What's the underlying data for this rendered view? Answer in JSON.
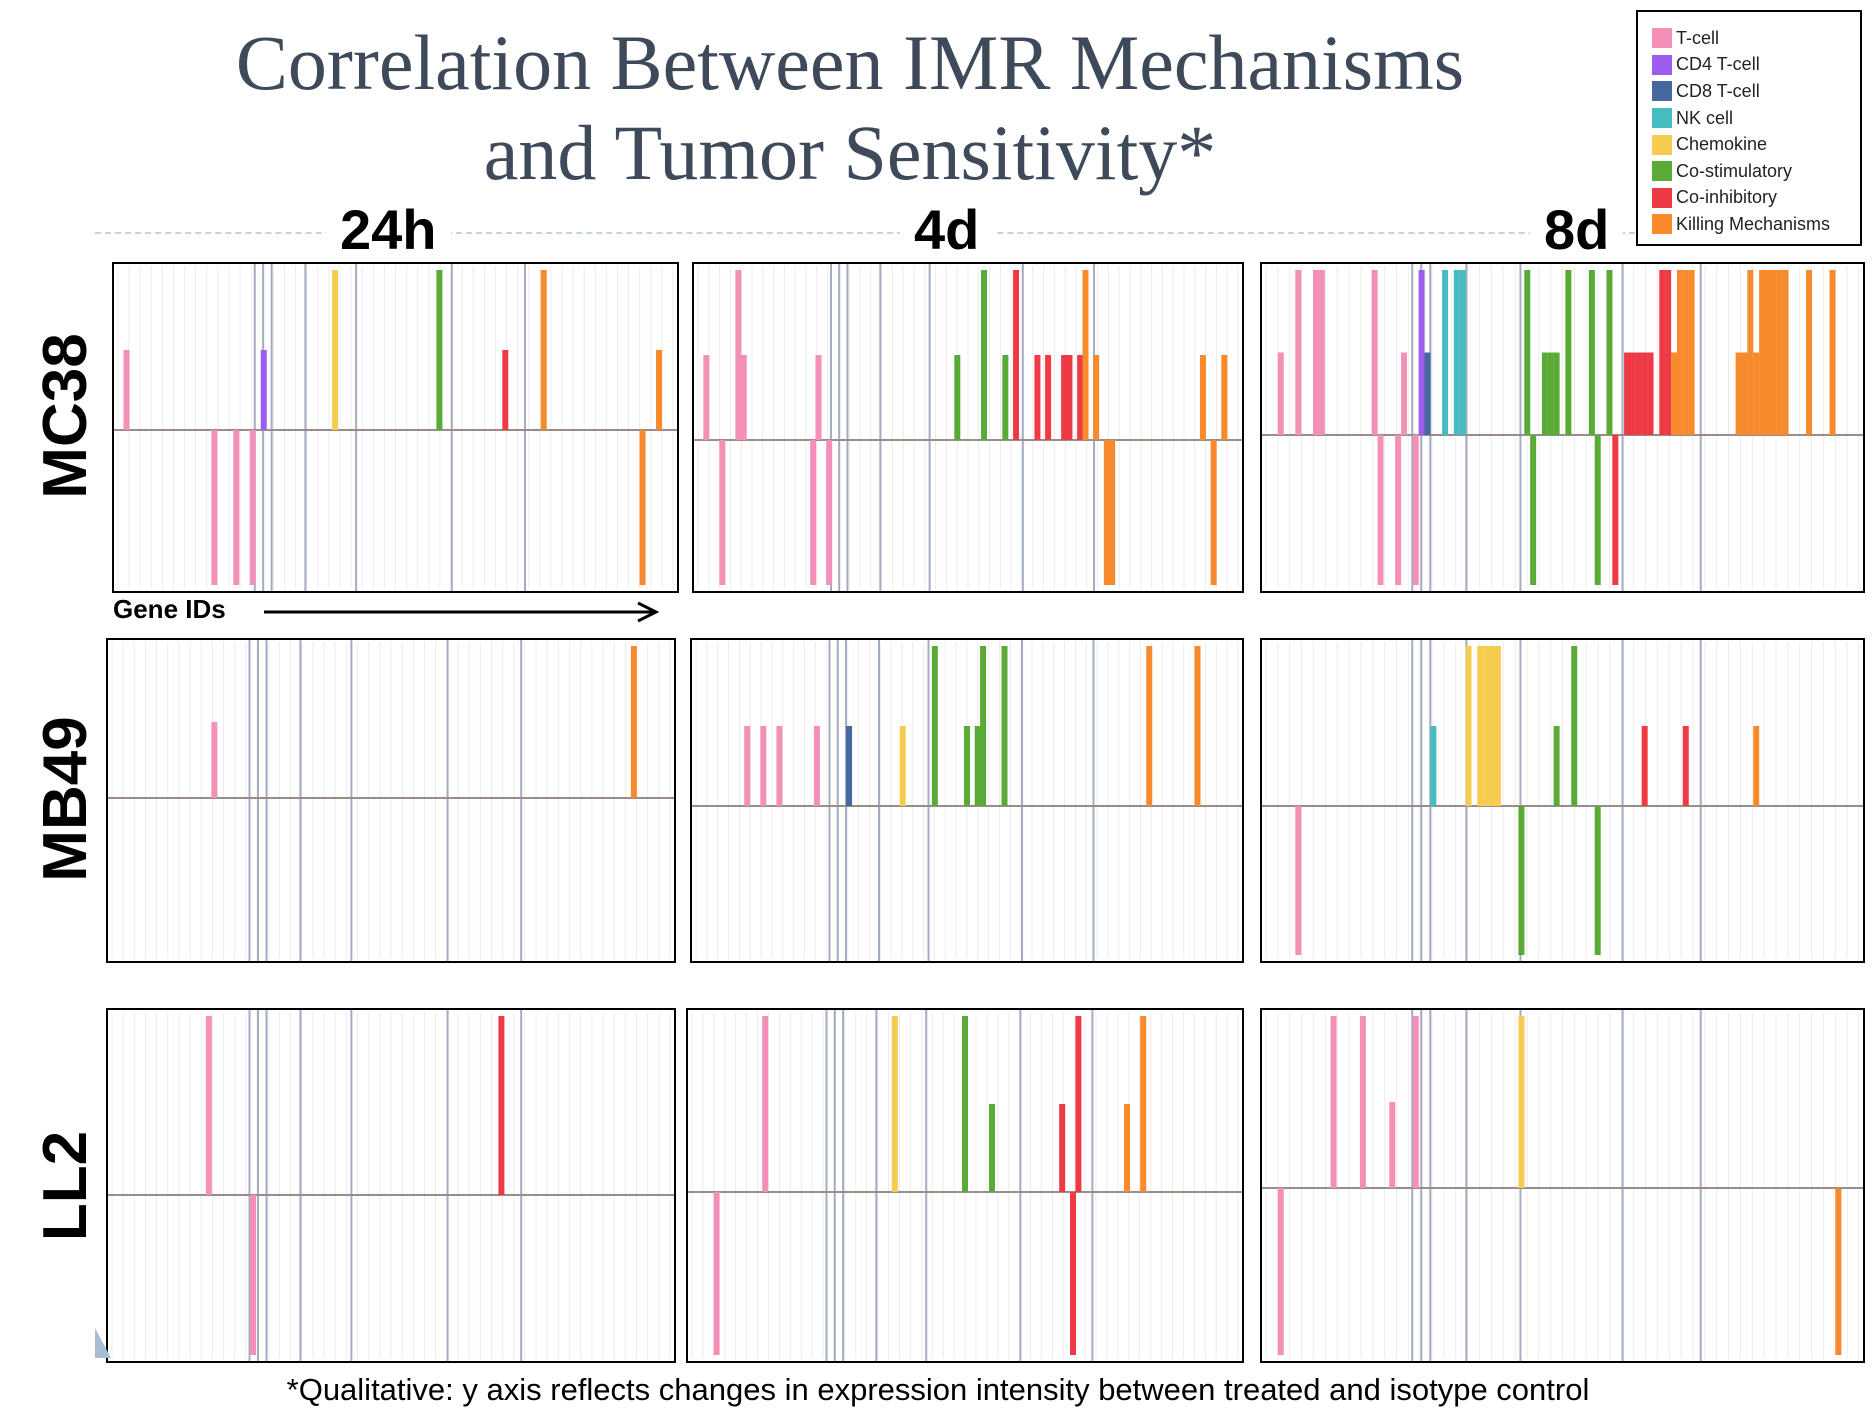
{
  "title_line1": "Correlation Between IMR Mechanisms",
  "title_line2": "and Tumor Sensitivity*",
  "columns": [
    "24h",
    "4d",
    "8d"
  ],
  "rows": [
    "MC38",
    "MB49",
    "LL2"
  ],
  "x_axis_label": "Gene IDs",
  "footnote": "*Qualitative: y axis reflects changes in expression intensity between treated and isotype control",
  "legend": [
    {
      "label": "T-cell",
      "color": "#f48fb8"
    },
    {
      "label": "CD4 T-cell",
      "color": "#9d5cf0"
    },
    {
      "label": "CD8 T-cell",
      "color": "#46689e"
    },
    {
      "label": "NK cell",
      "color": "#45bcc0"
    },
    {
      "label": "Chemokine",
      "color": "#f5cc4f"
    },
    {
      "label": "Co-stimulatory",
      "color": "#5aaa38"
    },
    {
      "label": "Co-inhibitory",
      "color": "#ee3a45"
    },
    {
      "label": "Killing Mechanisms",
      "color": "#f88a2e"
    }
  ],
  "chart_data": {
    "type": "bar",
    "note": "Qualitative expression change per gene; x = gene index 0-99, y = relative change (-1 to 1)",
    "ylim": [
      -1,
      1
    ],
    "xlim": [
      0,
      100
    ],
    "panels": [
      {
        "row": "MC38",
        "col": "24h",
        "bars": [
          {
            "x": 1,
            "y": 0.5,
            "cat": "T-cell"
          },
          {
            "x": 17,
            "y": -1,
            "cat": "T-cell"
          },
          {
            "x": 21,
            "y": -1,
            "cat": "T-cell"
          },
          {
            "x": 24,
            "y": -1,
            "cat": "T-cell"
          },
          {
            "x": 26,
            "y": 0.5,
            "cat": "CD4 T-cell"
          },
          {
            "x": 39,
            "y": 1,
            "cat": "Chemokine"
          },
          {
            "x": 58,
            "y": 1,
            "cat": "Co-stimulatory"
          },
          {
            "x": 70,
            "y": 0.5,
            "cat": "Co-inhibitory"
          },
          {
            "x": 77,
            "y": 1,
            "cat": "Killing Mechanisms"
          },
          {
            "x": 95,
            "y": -1,
            "cat": "Killing Mechanisms"
          },
          {
            "x": 98,
            "y": 0.5,
            "cat": "Killing Mechanisms"
          }
        ]
      },
      {
        "row": "MC38",
        "col": "4d",
        "bars": [
          {
            "x": 1,
            "y": 0.5,
            "cat": "T-cell"
          },
          {
            "x": 4,
            "y": -1,
            "cat": "T-cell"
          },
          {
            "x": 7,
            "y": 1,
            "cat": "T-cell"
          },
          {
            "x": 8,
            "y": 0.5,
            "cat": "T-cell"
          },
          {
            "x": 21,
            "y": -1,
            "cat": "T-cell"
          },
          {
            "x": 22,
            "y": 0.5,
            "cat": "T-cell"
          },
          {
            "x": 24,
            "y": -1,
            "cat": "T-cell"
          },
          {
            "x": 48,
            "y": 0.5,
            "cat": "Co-stimulatory"
          },
          {
            "x": 53,
            "y": 1,
            "cat": "Co-stimulatory"
          },
          {
            "x": 57,
            "y": 0.5,
            "cat": "Co-stimulatory"
          },
          {
            "x": 59,
            "y": 1,
            "cat": "Co-inhibitory"
          },
          {
            "x": 63,
            "y": 0.5,
            "cat": "Co-inhibitory"
          },
          {
            "x": 65,
            "y": 0.5,
            "cat": "Co-inhibitory"
          },
          {
            "x": 68,
            "y": 0.5,
            "cat": "Co-inhibitory"
          },
          {
            "x": 69,
            "y": 0.5,
            "cat": "Co-inhibitory"
          },
          {
            "x": 71,
            "y": 0.5,
            "cat": "Co-inhibitory"
          },
          {
            "x": 72,
            "y": 1,
            "cat": "Killing Mechanisms"
          },
          {
            "x": 74,
            "y": 0.5,
            "cat": "Killing Mechanisms"
          },
          {
            "x": 76,
            "y": -1,
            "cat": "Killing Mechanisms"
          },
          {
            "x": 77,
            "y": -1,
            "cat": "Killing Mechanisms"
          },
          {
            "x": 94,
            "y": 0.5,
            "cat": "Killing Mechanisms"
          },
          {
            "x": 96,
            "y": -1,
            "cat": "Killing Mechanisms"
          },
          {
            "x": 98,
            "y": 0.5,
            "cat": "Killing Mechanisms"
          }
        ]
      },
      {
        "row": "MC38",
        "col": "8d",
        "bars": [
          {
            "x": 2,
            "y": 0.5,
            "cat": "T-cell"
          },
          {
            "x": 5,
            "y": 1,
            "cat": "T-cell"
          },
          {
            "x": 8,
            "y": 1,
            "cat": "T-cell"
          },
          {
            "x": 9,
            "y": 1,
            "cat": "T-cell"
          },
          {
            "x": 18,
            "y": 1,
            "cat": "T-cell"
          },
          {
            "x": 19,
            "y": -1,
            "cat": "T-cell"
          },
          {
            "x": 22,
            "y": -1,
            "cat": "T-cell"
          },
          {
            "x": 23,
            "y": 0.5,
            "cat": "T-cell"
          },
          {
            "x": 25,
            "y": -1,
            "cat": "T-cell"
          },
          {
            "x": 26,
            "y": 1,
            "cat": "CD4 T-cell"
          },
          {
            "x": 27,
            "y": 0.5,
            "cat": "CD8 T-cell"
          },
          {
            "x": 30,
            "y": 1,
            "cat": "NK cell"
          },
          {
            "x": 32,
            "y": 1,
            "cat": "NK cell"
          },
          {
            "x": 33,
            "y": 1,
            "cat": "NK cell"
          },
          {
            "x": 44,
            "y": 1,
            "cat": "Co-stimulatory"
          },
          {
            "x": 45,
            "y": -1,
            "cat": "Co-stimulatory"
          },
          {
            "x": 47,
            "y": 0.5,
            "cat": "Co-stimulatory"
          },
          {
            "x": 48,
            "y": 0.5,
            "cat": "Co-stimulatory"
          },
          {
            "x": 49,
            "y": 0.5,
            "cat": "Co-stimulatory"
          },
          {
            "x": 51,
            "y": 1,
            "cat": "Co-stimulatory"
          },
          {
            "x": 55,
            "y": 1,
            "cat": "Co-stimulatory"
          },
          {
            "x": 56,
            "y": -1,
            "cat": "Co-stimulatory"
          },
          {
            "x": 58,
            "y": 1,
            "cat": "Co-stimulatory"
          },
          {
            "x": 59,
            "y": -1,
            "cat": "Co-inhibitory"
          },
          {
            "x": 61,
            "y": 0.5,
            "cat": "Co-inhibitory"
          },
          {
            "x": 62,
            "y": 0.5,
            "cat": "Co-inhibitory"
          },
          {
            "x": 63,
            "y": 0.5,
            "cat": "Co-inhibitory"
          },
          {
            "x": 64,
            "y": 0.5,
            "cat": "Co-inhibitory"
          },
          {
            "x": 65,
            "y": 0.5,
            "cat": "Co-inhibitory"
          },
          {
            "x": 67,
            "y": 1,
            "cat": "Co-inhibitory"
          },
          {
            "x": 68,
            "y": 1,
            "cat": "Co-inhibitory"
          },
          {
            "x": 69,
            "y": 0.5,
            "cat": "Killing Mechanisms"
          },
          {
            "x": 70,
            "y": 1,
            "cat": "Killing Mechanisms"
          },
          {
            "x": 71,
            "y": 1,
            "cat": "Killing Mechanisms"
          },
          {
            "x": 72,
            "y": 1,
            "cat": "Killing Mechanisms"
          },
          {
            "x": 80,
            "y": 0.5,
            "cat": "Killing Mechanisms"
          },
          {
            "x": 81,
            "y": 0.5,
            "cat": "Killing Mechanisms"
          },
          {
            "x": 82,
            "y": 1,
            "cat": "Killing Mechanisms"
          },
          {
            "x": 83,
            "y": 0.5,
            "cat": "Killing Mechanisms"
          },
          {
            "x": 84,
            "y": 1,
            "cat": "Killing Mechanisms"
          },
          {
            "x": 85,
            "y": 1,
            "cat": "Killing Mechanisms"
          },
          {
            "x": 86,
            "y": 1,
            "cat": "Killing Mechanisms"
          },
          {
            "x": 87,
            "y": 1,
            "cat": "Killing Mechanisms"
          },
          {
            "x": 88,
            "y": 1,
            "cat": "Killing Mechanisms"
          },
          {
            "x": 92,
            "y": 1,
            "cat": "Killing Mechanisms"
          },
          {
            "x": 96,
            "y": 1,
            "cat": "Killing Mechanisms"
          }
        ]
      },
      {
        "row": "MB49",
        "col": "24h",
        "bars": [
          {
            "x": 18,
            "y": 0.5,
            "cat": "T-cell"
          },
          {
            "x": 94,
            "y": 1,
            "cat": "Killing Mechanisms"
          }
        ]
      },
      {
        "row": "MB49",
        "col": "4d",
        "bars": [
          {
            "x": 9,
            "y": 0.5,
            "cat": "T-cell"
          },
          {
            "x": 12,
            "y": 0.5,
            "cat": "T-cell"
          },
          {
            "x": 15,
            "y": 0.5,
            "cat": "T-cell"
          },
          {
            "x": 22,
            "y": 0.5,
            "cat": "T-cell"
          },
          {
            "x": 28,
            "y": 0.5,
            "cat": "CD8 T-cell"
          },
          {
            "x": 38,
            "y": 0.5,
            "cat": "Chemokine"
          },
          {
            "x": 44,
            "y": 1,
            "cat": "Co-stimulatory"
          },
          {
            "x": 50,
            "y": 0.5,
            "cat": "Co-stimulatory"
          },
          {
            "x": 52,
            "y": 0.5,
            "cat": "Co-stimulatory"
          },
          {
            "x": 53,
            "y": 1,
            "cat": "Co-stimulatory"
          },
          {
            "x": 57,
            "y": 1,
            "cat": "Co-stimulatory"
          },
          {
            "x": 84,
            "y": 1,
            "cat": "Killing Mechanisms"
          },
          {
            "x": 93,
            "y": 1,
            "cat": "Killing Mechanisms"
          }
        ]
      },
      {
        "row": "MB49",
        "col": "8d",
        "bars": [
          {
            "x": 5,
            "y": -1,
            "cat": "T-cell"
          },
          {
            "x": 28,
            "y": 0.5,
            "cat": "NK cell"
          },
          {
            "x": 34,
            "y": 1,
            "cat": "Chemokine"
          },
          {
            "x": 36,
            "y": 1,
            "cat": "Chemokine"
          },
          {
            "x": 37,
            "y": 1,
            "cat": "Chemokine"
          },
          {
            "x": 38,
            "y": 1,
            "cat": "Chemokine"
          },
          {
            "x": 39,
            "y": 1,
            "cat": "Chemokine"
          },
          {
            "x": 43,
            "y": -1,
            "cat": "Co-stimulatory"
          },
          {
            "x": 49,
            "y": 0.5,
            "cat": "Co-stimulatory"
          },
          {
            "x": 52,
            "y": 1,
            "cat": "Co-stimulatory"
          },
          {
            "x": 56,
            "y": -1,
            "cat": "Co-stimulatory"
          },
          {
            "x": 64,
            "y": 0.5,
            "cat": "Co-inhibitory"
          },
          {
            "x": 71,
            "y": 0.5,
            "cat": "Co-inhibitory"
          },
          {
            "x": 83,
            "y": 0.5,
            "cat": "Killing Mechanisms"
          }
        ]
      },
      {
        "row": "LL2",
        "col": "24h",
        "bars": [
          {
            "x": 17,
            "y": 1,
            "cat": "T-cell"
          },
          {
            "x": 25,
            "y": -1,
            "cat": "T-cell"
          },
          {
            "x": 70,
            "y": 1,
            "cat": "Co-inhibitory"
          }
        ]
      },
      {
        "row": "LL2",
        "col": "4d",
        "bars": [
          {
            "x": 4,
            "y": -1,
            "cat": "T-cell"
          },
          {
            "x": 13,
            "y": 1,
            "cat": "T-cell"
          },
          {
            "x": 37,
            "y": 1,
            "cat": "Chemokine"
          },
          {
            "x": 50,
            "y": 1,
            "cat": "Co-stimulatory"
          },
          {
            "x": 55,
            "y": 0.5,
            "cat": "Co-stimulatory"
          },
          {
            "x": 68,
            "y": 0.5,
            "cat": "Co-inhibitory"
          },
          {
            "x": 70,
            "y": -1,
            "cat": "Co-inhibitory"
          },
          {
            "x": 71,
            "y": 1,
            "cat": "Co-inhibitory"
          },
          {
            "x": 80,
            "y": 0.5,
            "cat": "Killing Mechanisms"
          },
          {
            "x": 83,
            "y": 1,
            "cat": "Killing Mechanisms"
          }
        ]
      },
      {
        "row": "LL2",
        "col": "8d",
        "bars": [
          {
            "x": 2,
            "y": -1,
            "cat": "T-cell"
          },
          {
            "x": 11,
            "y": 1,
            "cat": "T-cell"
          },
          {
            "x": 16,
            "y": 1,
            "cat": "T-cell"
          },
          {
            "x": 21,
            "y": 0.5,
            "cat": "T-cell"
          },
          {
            "x": 25,
            "y": 1,
            "cat": "T-cell"
          },
          {
            "x": 43,
            "y": 1,
            "cat": "Chemokine"
          },
          {
            "x": 97,
            "y": -1,
            "cat": "Killing Mechanisms"
          }
        ]
      }
    ]
  }
}
